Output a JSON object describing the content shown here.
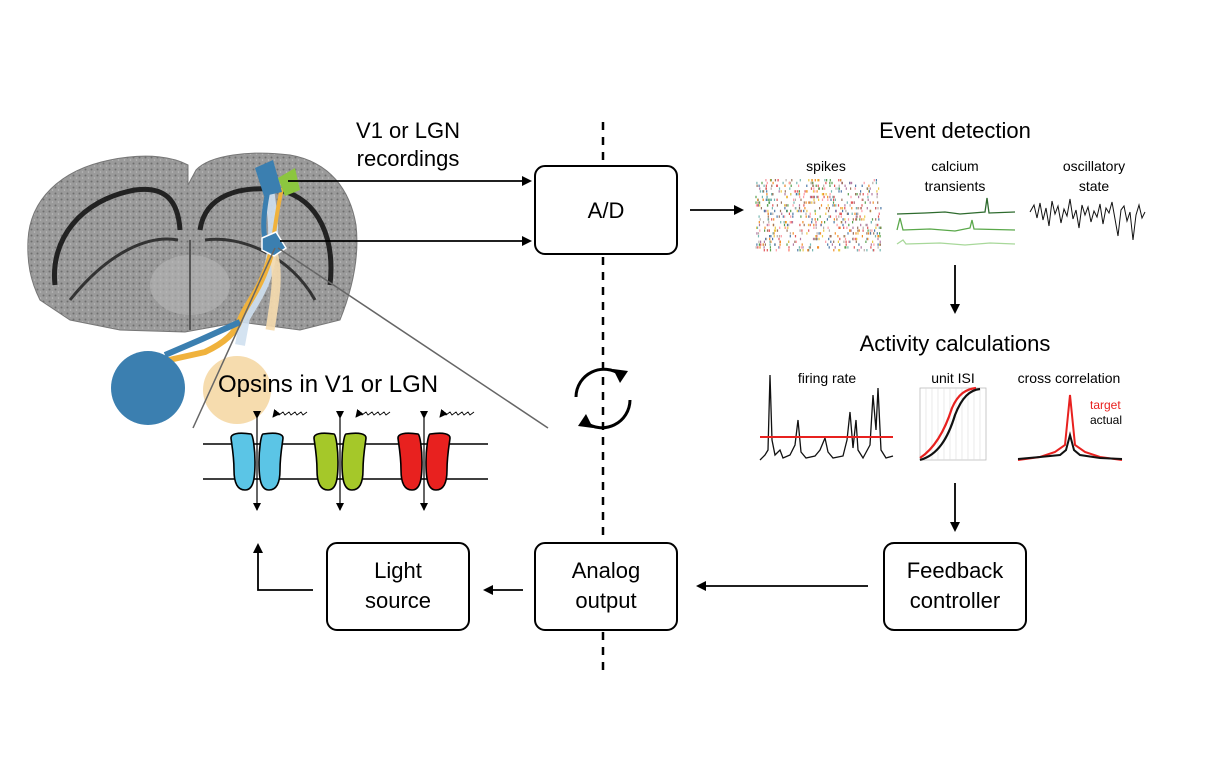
{
  "labels": {
    "recordings_line1": "V1 or LGN",
    "recordings_line2": "recordings",
    "ad_box": "A/D",
    "event_detection": "Event detection",
    "spikes": "spikes",
    "calcium_line1": "calcium",
    "calcium_line2": "transients",
    "oscillatory_line1": "oscillatory",
    "oscillatory_line2": "state",
    "activity_calculations": "Activity calculations",
    "firing_rate": "firing rate",
    "unit_isi": "unit ISI",
    "cross_correlation": "cross correlation",
    "target": "target",
    "actual": "actual",
    "opsins": "Opsins in V1 or LGN",
    "light_line1": "Light",
    "light_line2": "source",
    "analog_line1": "Analog",
    "analog_line2": "output",
    "feedback_line1": "Feedback",
    "feedback_line2": "controller"
  },
  "colors": {
    "blue_opsin": "#5bc5e6",
    "green_opsin": "#a5c829",
    "red_opsin": "#e8211f",
    "target_trace": "#e8211f",
    "v1_blue": "#3b7fb0",
    "lgn_orange": "#f0b23c",
    "lgn_light": "#f6dcae",
    "green_marker": "#8cc63f"
  },
  "icons": {
    "cycle": "refresh-cycle-icon",
    "brain": "coronal-brain-section"
  }
}
